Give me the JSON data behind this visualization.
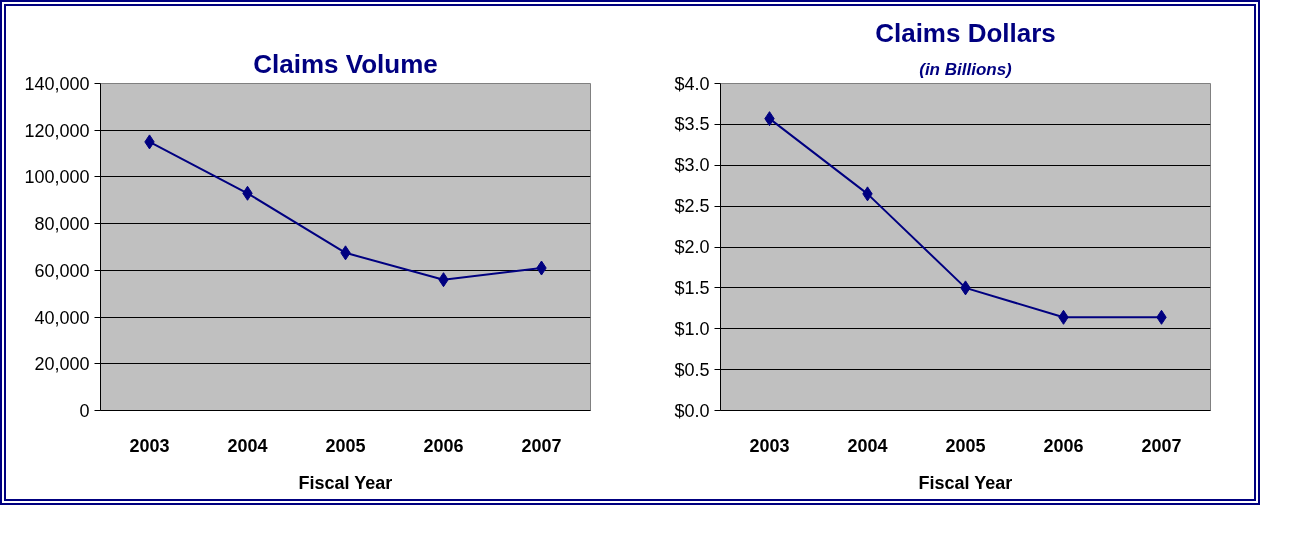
{
  "chart_data": [
    {
      "type": "line",
      "title": "Claims Volume",
      "xlabel": "Fiscal Year",
      "categories": [
        "2003",
        "2004",
        "2005",
        "2006",
        "2007"
      ],
      "series": [
        {
          "color": "#000080",
          "values": [
            115000,
            93000,
            67500,
            56000,
            61000
          ]
        }
      ],
      "ylim": [
        0,
        140000
      ],
      "yticks": [
        0,
        {
          "value": 20000,
          "label": "20,000"
        },
        {
          "value": 40000,
          "label": "40,000"
        },
        {
          "value": 60000,
          "label": "60,000"
        },
        {
          "value": 80000,
          "label": "80,000"
        },
        {
          "value": 100000,
          "label": "100,000"
        },
        {
          "value": 120000,
          "label": "120,000"
        },
        {
          "value": 140000,
          "label": "140,000"
        }
      ],
      "grid": "y",
      "marker": "diamond",
      "line_style": "solid"
    },
    {
      "type": "line",
      "title": "Claims Dollars",
      "subtitle": "(in Billions)",
      "xlabel": "Fiscal Year",
      "categories": [
        "2003",
        "2004",
        "2005",
        "2006",
        "2007"
      ],
      "series": [
        {
          "color": "#000080",
          "values": [
            3.57,
            2.65,
            1.5,
            1.14,
            1.14
          ]
        }
      ],
      "ylim": [
        0,
        4.0
      ],
      "yticks": [
        {
          "value": 0,
          "label": "$0.0"
        },
        {
          "value": 0.5,
          "label": "$0.5"
        },
        {
          "value": 1.0,
          "label": "$1.0"
        },
        {
          "value": 1.5,
          "label": "$1.5"
        },
        {
          "value": 2.0,
          "label": "$2.0"
        },
        {
          "value": 2.5,
          "label": "$2.5"
        },
        {
          "value": 3.0,
          "label": "$3.0"
        },
        {
          "value": 3.5,
          "label": "$3.5"
        },
        {
          "value": 4.0,
          "label": "$4.0"
        }
      ],
      "grid": "y",
      "marker": "diamond",
      "line_style": "solid"
    }
  ]
}
